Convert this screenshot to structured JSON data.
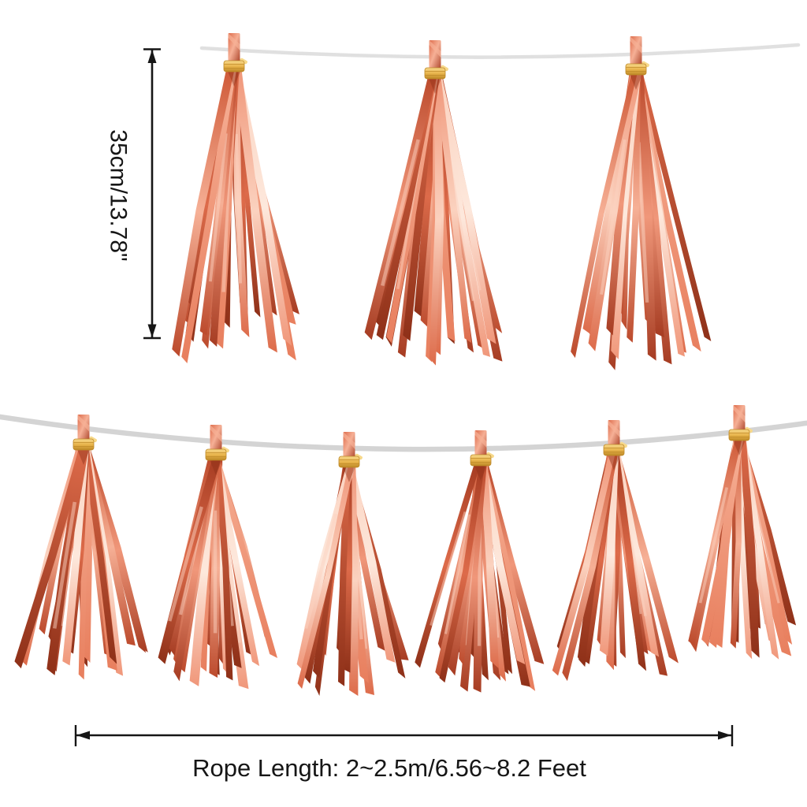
{
  "annotations": {
    "tassel_height_label": "35cm/13.78\"",
    "rope_length_label": "Rope Length: 2~2.5m/6.56~8.2 Feet"
  },
  "scene": {
    "description": "rose gold foil tassel garlands hanging on white ropes, two rows",
    "garlands": [
      {
        "id": "top",
        "tassel_count": 3
      },
      {
        "id": "bottom",
        "tassel_count": 6
      }
    ]
  },
  "colors": {
    "background": "#ffffff",
    "annotation_ink": "#161616",
    "rope_top": "#e0e0e0",
    "rope_bottom": "#d4d4d4",
    "tie_gold_light": "#f7d98b",
    "tie_gold": "#e9b54d",
    "tie_gold_dark": "#bd8826",
    "foil_palette": [
      "#fde8dc",
      "#fbd2bf",
      "#f6b096",
      "#f0977a",
      "#e87f5e",
      "#dd6b4a",
      "#cf5a38",
      "#bc4a2c",
      "#a63c22",
      "#8e3018",
      "#76250f"
    ]
  }
}
